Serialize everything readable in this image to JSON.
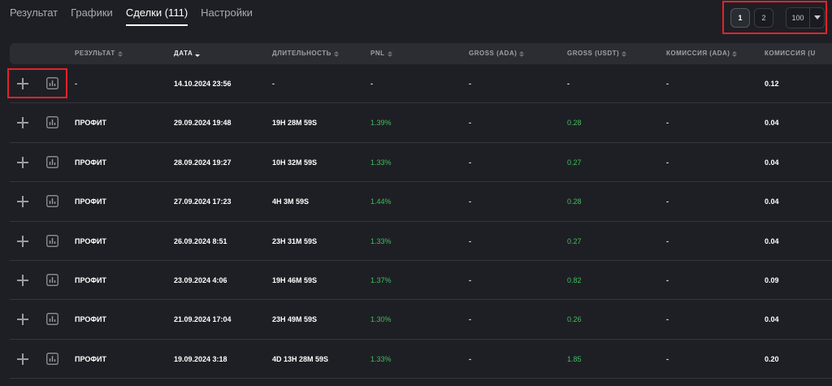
{
  "tabs": [
    {
      "label": "Результат",
      "active": false
    },
    {
      "label": "Графики",
      "active": false
    },
    {
      "label": "Сделки (111)",
      "active": true
    },
    {
      "label": "Настройки",
      "active": false
    }
  ],
  "pagination": {
    "pages": [
      "1",
      "2"
    ],
    "current_page": "1",
    "per_page": "100"
  },
  "columns": [
    {
      "label": "РЕЗУЛЬТАТ",
      "sorted": false
    },
    {
      "label": "ДАТА",
      "sorted": true
    },
    {
      "label": "ДЛИТЕЛЬНОСТЬ",
      "sorted": false
    },
    {
      "label": "PNL",
      "sorted": false
    },
    {
      "label": "GROSS (ADA)",
      "sorted": false
    },
    {
      "label": "GROSS (USDT)",
      "sorted": false
    },
    {
      "label": "КОМИССИЯ (ADA)",
      "sorted": false
    },
    {
      "label": "КОМИССИЯ (U"
    }
  ],
  "rows": [
    {
      "result": "-",
      "date": "14.10.2024 23:56",
      "duration": "-",
      "pnl": "-",
      "gross_ada": "-",
      "gross_usdt": "-",
      "fee_ada": "-",
      "fee_usdt": "0.12"
    },
    {
      "result": "ПРОФИТ",
      "date": "29.09.2024 19:48",
      "duration": "19H 28M 59S",
      "pnl": "1.39%",
      "gross_ada": "-",
      "gross_usdt": "0.28",
      "fee_ada": "-",
      "fee_usdt": "0.04"
    },
    {
      "result": "ПРОФИТ",
      "date": "28.09.2024 19:27",
      "duration": "10H 32M 59S",
      "pnl": "1.33%",
      "gross_ada": "-",
      "gross_usdt": "0.27",
      "fee_ada": "-",
      "fee_usdt": "0.04"
    },
    {
      "result": "ПРОФИТ",
      "date": "27.09.2024 17:23",
      "duration": "4H 3M 59S",
      "pnl": "1.44%",
      "gross_ada": "-",
      "gross_usdt": "0.28",
      "fee_ada": "-",
      "fee_usdt": "0.04"
    },
    {
      "result": "ПРОФИТ",
      "date": "26.09.2024 8:51",
      "duration": "23H 31M 59S",
      "pnl": "1.33%",
      "gross_ada": "-",
      "gross_usdt": "0.27",
      "fee_ada": "-",
      "fee_usdt": "0.04"
    },
    {
      "result": "ПРОФИТ",
      "date": "23.09.2024 4:06",
      "duration": "19H 46M 59S",
      "pnl": "1.37%",
      "gross_ada": "-",
      "gross_usdt": "0.82",
      "fee_ada": "-",
      "fee_usdt": "0.09"
    },
    {
      "result": "ПРОФИТ",
      "date": "21.09.2024 17:04",
      "duration": "23H 49M 59S",
      "pnl": "1.30%",
      "gross_ada": "-",
      "gross_usdt": "0.26",
      "fee_ada": "-",
      "fee_usdt": "0.04"
    },
    {
      "result": "ПРОФИТ",
      "date": "19.09.2024 3:18",
      "duration": "4D 13H 28M 59S",
      "pnl": "1.33%",
      "gross_ada": "-",
      "gross_usdt": "1.85",
      "fee_ada": "-",
      "fee_usdt": "0.20"
    }
  ],
  "icons": {
    "expand": "plus-icon",
    "chart": "bar-chart-icon",
    "sort": "sort-arrows-icon",
    "dropdown": "chevron-down-icon"
  },
  "colors": {
    "background": "#1e1f24",
    "header": "#2b2d33",
    "positive": "#3fbf5f",
    "highlight": "#e0242b"
  }
}
